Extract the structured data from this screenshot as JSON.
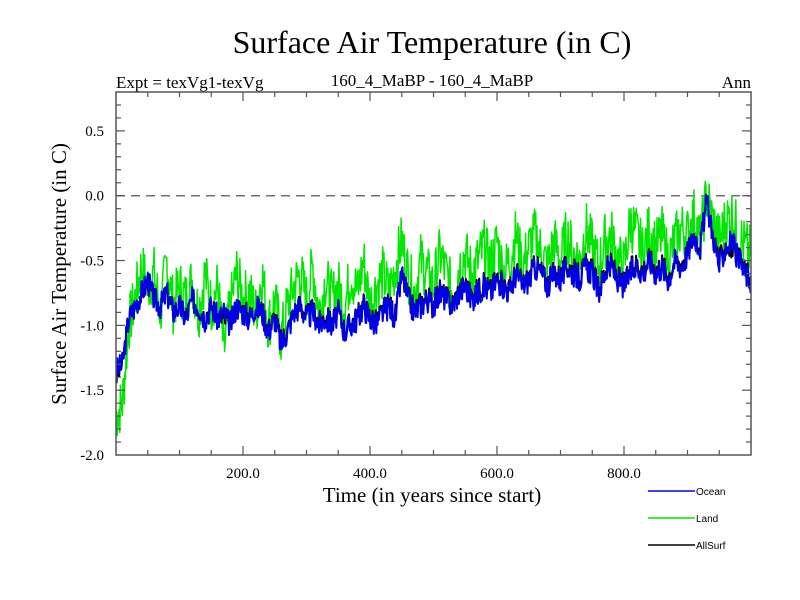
{
  "chart_data": {
    "type": "line",
    "title": "Surface Air Temperature (in C)",
    "subtitle_left": "Expt = texVg1-texVg",
    "subtitle_center": "160_4_MaBP - 160_4_MaBP",
    "subtitle_right": "Ann",
    "xlabel": "Time (in years since start)",
    "ylabel": "Surface Air Temperature (in C)",
    "xlim": [
      0,
      1000
    ],
    "ylim": [
      -2.0,
      0.8
    ],
    "xticks": [
      200,
      400,
      600,
      800
    ],
    "xtick_labels": [
      "200.0",
      "400.0",
      "600.0",
      "800.0"
    ],
    "yticks": [
      0.5,
      0.0,
      -0.5,
      -1.0,
      -1.5,
      -2.0
    ],
    "ytick_labels": [
      "0.5",
      "0.0",
      "-0.5",
      "-1.0",
      "-1.5",
      "-2.0"
    ],
    "reference_line": {
      "y": 0.0,
      "style": "dashed",
      "color": "#707070"
    },
    "grid": false,
    "legend_position": "bottom-right, outside plot",
    "x": [
      0,
      10,
      20,
      30,
      40,
      50,
      60,
      70,
      80,
      90,
      100,
      110,
      120,
      130,
      140,
      150,
      160,
      170,
      180,
      190,
      200,
      210,
      220,
      230,
      240,
      250,
      260,
      270,
      280,
      290,
      300,
      310,
      320,
      330,
      340,
      350,
      360,
      370,
      380,
      390,
      400,
      410,
      420,
      430,
      440,
      450,
      460,
      470,
      480,
      490,
      500,
      510,
      520,
      530,
      540,
      550,
      560,
      570,
      580,
      590,
      600,
      610,
      620,
      630,
      640,
      650,
      660,
      670,
      680,
      690,
      700,
      710,
      720,
      730,
      740,
      750,
      760,
      770,
      780,
      790,
      800,
      810,
      820,
      830,
      840,
      850,
      860,
      870,
      880,
      890,
      900,
      910,
      920,
      930,
      940,
      950,
      960,
      970,
      980,
      990,
      1000
    ],
    "series": [
      {
        "name": "Land",
        "color": "#00e600",
        "values": [
          -1.7,
          -1.6,
          -1.0,
          -0.8,
          -0.55,
          -0.7,
          -0.6,
          -0.9,
          -0.5,
          -0.85,
          -0.7,
          -0.8,
          -0.65,
          -0.9,
          -0.6,
          -0.85,
          -0.7,
          -1.2,
          -0.85,
          -0.6,
          -0.8,
          -0.75,
          -0.9,
          -0.6,
          -1.0,
          -0.8,
          -1.1,
          -0.85,
          -0.7,
          -0.6,
          -0.8,
          -0.55,
          -0.9,
          -0.65,
          -0.8,
          -0.7,
          -0.85,
          -0.6,
          -0.75,
          -0.5,
          -0.85,
          -0.7,
          -0.6,
          -0.75,
          -0.55,
          -0.35,
          -0.6,
          -0.75,
          -0.5,
          -0.6,
          -0.7,
          -0.45,
          -0.6,
          -0.75,
          -0.55,
          -0.45,
          -0.6,
          -0.5,
          -0.4,
          -0.55,
          -0.35,
          -0.6,
          -0.5,
          -0.3,
          -0.55,
          -0.4,
          -0.3,
          -0.45,
          -0.55,
          -0.35,
          -0.5,
          -0.3,
          -0.45,
          -0.5,
          -0.25,
          -0.4,
          -0.55,
          -0.35,
          -0.3,
          -0.5,
          -0.55,
          -0.2,
          -0.3,
          -0.45,
          -0.25,
          -0.4,
          -0.3,
          -0.5,
          -0.35,
          -0.25,
          -0.3,
          -0.15,
          -0.35,
          0.0,
          -0.2,
          -0.35,
          -0.2,
          -0.15,
          -0.3,
          -0.4,
          -0.45
        ]
      },
      {
        "name": "AllSurf",
        "color": "#000000",
        "values": [
          -1.4,
          -1.3,
          -0.95,
          -0.85,
          -0.75,
          -0.67,
          -0.8,
          -0.85,
          -0.75,
          -0.88,
          -0.85,
          -0.93,
          -0.8,
          -0.87,
          -0.93,
          -0.85,
          -0.93,
          -0.95,
          -0.98,
          -0.85,
          -0.88,
          -0.93,
          -0.87,
          -0.88,
          -1.03,
          -0.93,
          -1.12,
          -1.03,
          -0.9,
          -0.83,
          -0.93,
          -0.88,
          -0.98,
          -0.93,
          -0.98,
          -0.9,
          -1.03,
          -0.98,
          -0.93,
          -0.83,
          -0.93,
          -0.97,
          -0.88,
          -0.83,
          -0.92,
          -0.6,
          -0.78,
          -0.88,
          -0.82,
          -0.78,
          -0.83,
          -0.73,
          -0.78,
          -0.83,
          -0.73,
          -0.68,
          -0.78,
          -0.72,
          -0.68,
          -0.72,
          -0.63,
          -0.68,
          -0.72,
          -0.58,
          -0.68,
          -0.63,
          -0.53,
          -0.58,
          -0.68,
          -0.58,
          -0.62,
          -0.53,
          -0.57,
          -0.62,
          -0.53,
          -0.57,
          -0.72,
          -0.58,
          -0.52,
          -0.62,
          -0.68,
          -0.57,
          -0.52,
          -0.57,
          -0.48,
          -0.57,
          -0.52,
          -0.62,
          -0.5,
          -0.52,
          -0.43,
          -0.3,
          -0.38,
          -0.05,
          -0.3,
          -0.5,
          -0.38,
          -0.42,
          -0.48,
          -0.57,
          -0.62
        ]
      },
      {
        "name": "Ocean",
        "color": "#0000e6",
        "values": [
          -1.35,
          -1.3,
          -0.95,
          -0.85,
          -0.75,
          -0.65,
          -0.8,
          -0.85,
          -0.75,
          -0.9,
          -0.85,
          -0.95,
          -0.8,
          -0.85,
          -0.95,
          -0.85,
          -0.95,
          -0.9,
          -1.0,
          -0.85,
          -0.9,
          -0.95,
          -0.85,
          -0.9,
          -1.05,
          -0.95,
          -1.15,
          -1.05,
          -0.9,
          -0.85,
          -0.95,
          -0.9,
          -1.0,
          -0.95,
          -1.0,
          -0.9,
          -1.05,
          -1.0,
          -0.95,
          -0.85,
          -0.95,
          -1.0,
          -0.9,
          -0.85,
          -0.95,
          -0.6,
          -0.8,
          -0.9,
          -0.85,
          -0.8,
          -0.85,
          -0.75,
          -0.8,
          -0.85,
          -0.75,
          -0.7,
          -0.8,
          -0.75,
          -0.7,
          -0.75,
          -0.65,
          -0.7,
          -0.75,
          -0.6,
          -0.7,
          -0.65,
          -0.55,
          -0.6,
          -0.7,
          -0.6,
          -0.65,
          -0.55,
          -0.6,
          -0.65,
          -0.55,
          -0.6,
          -0.75,
          -0.6,
          -0.55,
          -0.65,
          -0.7,
          -0.6,
          -0.55,
          -0.6,
          -0.5,
          -0.6,
          -0.55,
          -0.65,
          -0.5,
          -0.55,
          -0.45,
          -0.3,
          -0.4,
          -0.05,
          -0.3,
          -0.55,
          -0.4,
          -0.35,
          -0.5,
          -0.6,
          -0.65
        ]
      }
    ],
    "legend": [
      {
        "name": "Ocean",
        "color": "#0000e6"
      },
      {
        "name": "Land",
        "color": "#00e600"
      },
      {
        "name": "AllSurf",
        "color": "#000000"
      }
    ]
  }
}
